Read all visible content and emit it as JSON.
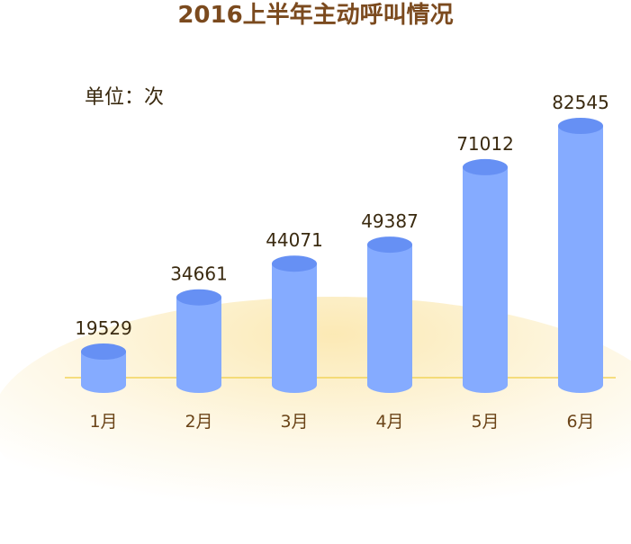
{
  "chart_data": {
    "type": "bar",
    "title": "2016上半年主动呼叫情况",
    "unit_label": "单位：次",
    "categories": [
      "1月",
      "2月",
      "3月",
      "4月",
      "5月",
      "6月"
    ],
    "values": [
      19529,
      34661,
      44071,
      49387,
      71012,
      82545
    ],
    "ylim": [
      0,
      90000
    ],
    "grid": false,
    "legend": "none",
    "xlabel": "",
    "ylabel": ""
  },
  "colors": {
    "bar_body": "#85abff",
    "bar_top": "#6690f4",
    "baseline": "#f2d45c",
    "glow": "#f7cf5a",
    "title": "#7b4a1e",
    "value_label": "#3a2a10",
    "category_label": "#6b4418"
  }
}
